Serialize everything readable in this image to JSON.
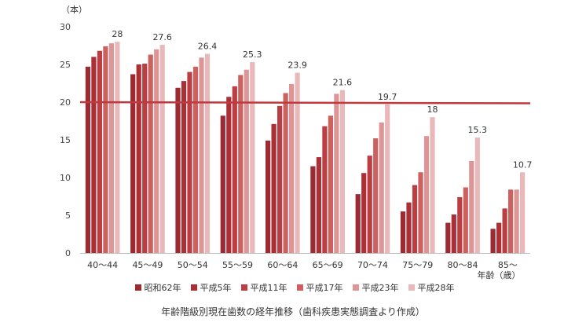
{
  "chart_data": {
    "type": "bar",
    "unit_label": "（本）",
    "categories": [
      "40～44",
      "45～49",
      "50～54",
      "55～59",
      "60～64",
      "65～69",
      "70～74",
      "75～79",
      "80～84",
      "85～"
    ],
    "extra_x_label": "年齢（歳）",
    "ylim": [
      0,
      30
    ],
    "yticks": [
      0,
      5,
      10,
      15,
      20,
      25,
      30
    ],
    "reference_line": 20,
    "series": [
      {
        "name": "昭和62年",
        "color": "#9b2a33",
        "values": [
          24.7,
          23.7,
          21.9,
          18.2,
          14.9,
          11.5,
          7.8,
          5.5,
          4.0,
          3.2
        ]
      },
      {
        "name": "平成5年",
        "color": "#aa3036",
        "values": [
          26.0,
          25.0,
          22.8,
          20.7,
          17.1,
          12.7,
          10.6,
          6.7,
          5.1,
          4.0
        ]
      },
      {
        "name": "平成11年",
        "color": "#bb3e42",
        "values": [
          26.8,
          25.1,
          24.0,
          22.1,
          19.5,
          16.8,
          12.9,
          9.0,
          7.4,
          5.9
        ]
      },
      {
        "name": "平成17年",
        "color": "#cc6160",
        "values": [
          27.4,
          26.3,
          24.7,
          23.6,
          21.2,
          18.2,
          15.2,
          10.7,
          8.7,
          8.4
        ]
      },
      {
        "name": "平成23年",
        "color": "#dd9596",
        "values": [
          27.8,
          27.0,
          25.9,
          24.3,
          22.4,
          21.1,
          17.3,
          15.5,
          12.2,
          8.4
        ]
      },
      {
        "name": "平成28年",
        "color": "#e8b8ba",
        "values": [
          28.0,
          27.6,
          26.4,
          25.3,
          23.9,
          21.6,
          19.7,
          18.0,
          15.3,
          10.7
        ]
      }
    ],
    "top_labels": [
      "28",
      "27.6",
      "26.4",
      "25.3",
      "23.9",
      "21.6",
      "19.7",
      "18",
      "15.3",
      "10.7"
    ],
    "grid": false,
    "legend_position": "bottom"
  },
  "caption": "年齢階級別現在歯数の経年推移（歯科疾患実態調査より作成）",
  "colors": {
    "reference_line": "#c0393e",
    "axis": "#bbbbbb"
  }
}
